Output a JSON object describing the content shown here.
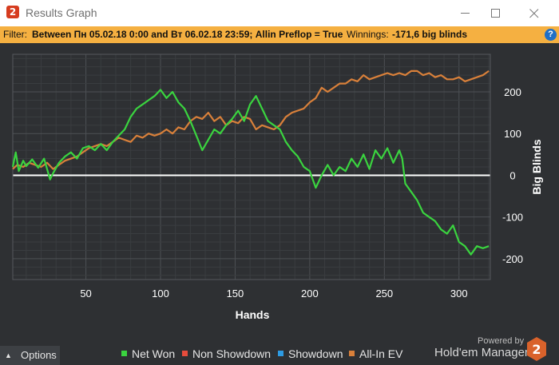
{
  "window": {
    "title": "Results Graph",
    "logo_glyph": "2"
  },
  "filter": {
    "label": "Filter:",
    "text": "Between Пн 05.02.18 0:00 and Вт 06.02.18 23:59; Allin Preflop = True",
    "winnings_label": "Winnings:",
    "winnings_value": "-171,6 big blinds"
  },
  "icons": {
    "help": "?",
    "minimize": "minimize-icon",
    "maximize": "maximize-icon",
    "close": "close-icon"
  },
  "footer": {
    "options_label": "Options",
    "powered_by": "Powered by",
    "brand": "Hold'em Manager",
    "brand_glyph": "2"
  },
  "colors": {
    "net_won": "#3ad43f",
    "non_showdown": "#e74c3c",
    "showdown": "#2d9be3",
    "allin_ev": "#d9803a",
    "plot_bg": "#2e3033",
    "filter_bar": "#f5b041"
  },
  "chart_data": {
    "type": "line",
    "xlabel": "Hands",
    "ylabel": "Big Blinds",
    "xlim": [
      1,
      321
    ],
    "ylim": [
      -250,
      290
    ],
    "x_ticks": [
      50,
      100,
      150,
      200,
      250,
      300
    ],
    "y_ticks": [
      -200,
      -100,
      0,
      100,
      200
    ],
    "grid": true,
    "legend_position": "bottom",
    "series": [
      {
        "name": "Net Won",
        "color_key": "net_won",
        "x": [
          1,
          3,
          5,
          8,
          10,
          14,
          18,
          22,
          26,
          28,
          32,
          36,
          40,
          44,
          48,
          52,
          56,
          60,
          64,
          68,
          72,
          76,
          80,
          84,
          88,
          92,
          96,
          100,
          104,
          108,
          112,
          116,
          120,
          124,
          128,
          132,
          136,
          140,
          144,
          148,
          152,
          156,
          160,
          164,
          168,
          172,
          176,
          180,
          184,
          188,
          192,
          196,
          200,
          204,
          206,
          208,
          212,
          216,
          220,
          224,
          228,
          232,
          236,
          240,
          244,
          248,
          252,
          256,
          260,
          262,
          264,
          268,
          272,
          276,
          280,
          284,
          288,
          292,
          296,
          300,
          304,
          308,
          312,
          316,
          320
        ],
        "y": [
          20,
          55,
          10,
          35,
          22,
          38,
          18,
          40,
          -10,
          5,
          30,
          45,
          55,
          40,
          65,
          70,
          60,
          75,
          60,
          80,
          95,
          110,
          140,
          160,
          170,
          180,
          190,
          205,
          185,
          200,
          175,
          160,
          130,
          95,
          60,
          85,
          110,
          100,
          120,
          135,
          155,
          130,
          170,
          190,
          160,
          130,
          120,
          110,
          80,
          60,
          45,
          20,
          10,
          -30,
          -15,
          0,
          25,
          0,
          20,
          10,
          40,
          20,
          50,
          15,
          60,
          40,
          65,
          30,
          60,
          40,
          -20,
          -40,
          -60,
          -90,
          -100,
          -110,
          -130,
          -140,
          -120,
          -160,
          -170,
          -190,
          -170,
          -175,
          -170
        ]
      },
      {
        "name": "Non Showdown",
        "color_key": "non_showdown",
        "x": [],
        "y": []
      },
      {
        "name": "Showdown",
        "color_key": "showdown",
        "x": [],
        "y": []
      },
      {
        "name": "All-In EV",
        "color_key": "allin_ev",
        "x": [
          1,
          4,
          8,
          12,
          16,
          20,
          24,
          28,
          32,
          36,
          40,
          44,
          48,
          52,
          56,
          60,
          64,
          68,
          72,
          76,
          80,
          84,
          88,
          92,
          96,
          100,
          104,
          108,
          112,
          116,
          120,
          124,
          128,
          132,
          136,
          140,
          144,
          148,
          152,
          156,
          160,
          164,
          168,
          172,
          176,
          180,
          184,
          188,
          192,
          196,
          200,
          204,
          208,
          212,
          216,
          220,
          224,
          228,
          232,
          236,
          240,
          244,
          248,
          252,
          256,
          260,
          264,
          268,
          272,
          276,
          280,
          284,
          288,
          292,
          296,
          300,
          304,
          308,
          312,
          316,
          320
        ],
        "y": [
          15,
          25,
          20,
          30,
          25,
          20,
          30,
          15,
          25,
          35,
          40,
          45,
          55,
          65,
          70,
          75,
          70,
          80,
          90,
          85,
          80,
          95,
          90,
          100,
          95,
          100,
          110,
          100,
          115,
          110,
          130,
          140,
          135,
          150,
          130,
          140,
          120,
          130,
          125,
          140,
          135,
          110,
          120,
          115,
          110,
          120,
          140,
          150,
          155,
          160,
          175,
          185,
          210,
          200,
          210,
          220,
          220,
          230,
          225,
          240,
          230,
          235,
          240,
          245,
          240,
          245,
          240,
          250,
          250,
          240,
          245,
          235,
          240,
          230,
          230,
          235,
          225,
          230,
          235,
          240,
          250
        ]
      }
    ]
  }
}
